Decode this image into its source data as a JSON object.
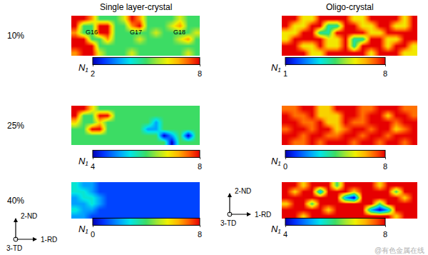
{
  "column_titles": [
    "Single layer-crystal",
    "Oligo-crystal"
  ],
  "row_labels": [
    "10%",
    "25%",
    "40%"
  ],
  "axes_keys": [
    {
      "up": "2-ND",
      "right": "1-RD",
      "out": "3-TD"
    },
    {
      "up": "2-ND",
      "right": "1-RD",
      "out": "3-TD"
    }
  ],
  "watermark": "@有色金属在线",
  "chart_data": [
    {
      "type": "heatmap",
      "column": "Single layer-crystal",
      "row": "10%",
      "colorbar_label": "N₁",
      "tick_labels": false,
      "colorbar": {
        "range": [
          2,
          8
        ],
        "ticks": [
          2,
          8
        ]
      },
      "grain_labels": [
        {
          "text": "G16",
          "x": 2,
          "y": 2
        },
        {
          "text": "G17",
          "x": 7.5,
          "y": 2
        },
        {
          "text": "G18",
          "x": 13,
          "y": 2
        }
      ],
      "cells": [
        [
          8,
          8,
          7,
          5,
          5,
          5,
          6,
          8,
          7,
          5,
          5,
          5,
          5,
          6,
          5,
          5
        ],
        [
          8,
          5,
          5,
          8,
          8,
          5,
          5,
          7,
          8,
          5,
          5,
          5,
          6,
          7,
          5,
          5
        ],
        [
          7,
          5,
          5,
          8,
          8,
          5,
          5,
          5,
          5,
          5,
          6,
          5,
          5,
          5,
          5,
          6
        ],
        [
          8,
          8,
          5,
          5,
          7,
          5,
          5,
          5,
          6,
          5,
          5,
          5,
          5,
          6,
          7,
          5
        ],
        [
          8,
          8,
          8,
          5,
          5,
          5,
          5,
          5,
          5,
          5,
          5,
          5,
          5,
          5,
          5,
          5
        ],
        [
          7,
          8,
          8,
          6,
          5,
          5,
          5,
          6,
          5,
          5,
          5,
          5,
          5,
          5,
          6,
          5
        ]
      ]
    },
    {
      "type": "heatmap",
      "column": "Single layer-crystal",
      "row": "25%",
      "colorbar_label": "N₁",
      "tick_labels": false,
      "colorbar": {
        "range": [
          4,
          8
        ],
        "ticks": [
          4,
          8
        ]
      },
      "cells": [
        [
          8,
          8,
          7,
          6,
          6,
          6,
          6,
          6,
          6,
          6,
          6,
          6,
          6,
          6,
          6,
          6
        ],
        [
          8,
          6,
          6,
          8,
          8,
          6,
          6,
          6,
          6,
          6,
          6,
          6,
          6,
          6,
          6,
          6
        ],
        [
          7,
          6,
          6,
          7,
          6,
          6,
          6,
          6,
          6,
          6,
          5,
          6,
          6,
          6,
          6,
          6
        ],
        [
          6,
          6,
          8,
          8,
          6,
          6,
          6,
          6,
          6,
          5,
          5,
          6,
          6,
          6,
          6,
          6
        ],
        [
          6,
          6,
          6,
          6,
          6,
          6,
          6,
          6,
          6,
          6,
          6,
          4,
          5,
          6,
          4,
          6
        ],
        [
          6,
          6,
          6,
          6,
          6,
          6,
          6,
          6,
          6,
          6,
          6,
          6,
          4,
          6,
          6,
          6
        ]
      ]
    },
    {
      "type": "heatmap",
      "column": "Single layer-crystal",
      "row": "40%",
      "colorbar_label": "N₁",
      "tick_labels": false,
      "colorbar": {
        "range": [
          0,
          8
        ],
        "ticks": [
          0,
          8
        ]
      },
      "cells": [
        [
          3,
          2,
          2,
          1,
          1,
          1,
          1,
          1,
          1,
          1,
          1,
          1,
          1,
          1,
          1,
          1
        ],
        [
          3,
          3,
          2,
          1,
          1,
          1,
          1,
          1,
          1,
          1,
          1,
          1,
          1,
          1,
          1,
          1
        ],
        [
          2,
          3,
          3,
          2,
          1,
          1,
          1,
          1,
          1,
          1,
          1,
          1,
          1,
          1,
          1,
          1
        ],
        [
          2,
          2,
          3,
          2,
          1,
          1,
          1,
          1,
          1,
          1,
          1,
          1,
          1,
          1,
          1,
          1
        ],
        [
          3,
          2,
          2,
          1,
          1,
          1,
          1,
          1,
          1,
          1,
          1,
          1,
          1,
          1,
          1,
          1
        ],
        [
          2,
          2,
          1,
          1,
          1,
          1,
          1,
          1,
          1,
          1,
          1,
          1,
          1,
          1,
          1,
          1
        ]
      ]
    },
    {
      "type": "heatmap",
      "column": "Oligo-crystal",
      "row": "10%",
      "colorbar_label": "N₁",
      "tick_labels": false,
      "colorbar": {
        "range": [
          1,
          8
        ],
        "ticks": [
          1,
          8
        ]
      },
      "cells": [
        [
          8,
          8,
          6,
          6,
          8,
          8,
          8,
          8,
          6,
          6,
          8,
          8,
          8,
          8,
          6,
          8
        ],
        [
          8,
          6,
          6,
          8,
          8,
          4,
          4,
          8,
          8,
          6,
          6,
          8,
          8,
          6,
          6,
          8
        ],
        [
          6,
          6,
          8,
          8,
          4,
          4,
          8,
          8,
          8,
          8,
          6,
          6,
          8,
          8,
          8,
          8
        ],
        [
          6,
          8,
          8,
          8,
          8,
          6,
          6,
          8,
          4,
          4,
          8,
          8,
          6,
          6,
          8,
          8
        ],
        [
          8,
          8,
          6,
          6,
          8,
          6,
          6,
          8,
          4,
          8,
          8,
          8,
          6,
          8,
          8,
          6
        ],
        [
          8,
          8,
          8,
          6,
          6,
          8,
          8,
          8,
          8,
          8,
          6,
          8,
          8,
          8,
          6,
          6
        ]
      ]
    },
    {
      "type": "heatmap",
      "column": "Oligo-crystal",
      "row": "25%",
      "colorbar_label": "N₁",
      "tick_labels": false,
      "colorbar": {
        "range": [
          0,
          8
        ],
        "ticks": [
          0,
          8
        ]
      },
      "cells": [
        [
          7,
          7,
          8,
          8,
          6,
          6,
          8,
          8,
          8,
          7,
          7,
          8,
          8,
          8,
          7,
          7
        ],
        [
          8,
          7,
          7,
          8,
          6,
          6,
          6,
          8,
          8,
          7,
          8,
          8,
          6,
          8,
          8,
          7
        ],
        [
          8,
          8,
          7,
          7,
          8,
          6,
          6,
          8,
          7,
          7,
          8,
          8,
          8,
          7,
          8,
          8
        ],
        [
          7,
          8,
          8,
          7,
          8,
          8,
          6,
          7,
          8,
          8,
          7,
          8,
          8,
          6,
          7,
          8
        ],
        [
          8,
          8,
          7,
          8,
          8,
          7,
          7,
          8,
          8,
          7,
          8,
          8,
          7,
          8,
          8,
          8
        ],
        [
          8,
          7,
          7,
          8,
          7,
          8,
          8,
          8,
          7,
          8,
          8,
          7,
          8,
          8,
          7,
          8
        ]
      ]
    },
    {
      "type": "heatmap",
      "column": "Oligo-crystal",
      "row": "40%",
      "colorbar_label": "N₁",
      "tick_labels": false,
      "colorbar": {
        "range": [
          4,
          8
        ],
        "ticks": [
          4,
          8
        ]
      },
      "cells": [
        [
          8,
          8,
          7,
          8,
          8,
          8,
          6,
          8,
          8,
          8,
          8,
          7,
          8,
          8,
          8,
          8
        ],
        [
          8,
          7,
          8,
          8,
          5,
          8,
          8,
          8,
          7,
          8,
          8,
          8,
          8,
          6,
          8,
          8
        ],
        [
          8,
          8,
          8,
          8,
          8,
          8,
          8,
          5,
          4,
          8,
          8,
          8,
          8,
          8,
          7,
          8
        ],
        [
          7,
          8,
          8,
          6,
          8,
          8,
          8,
          8,
          8,
          8,
          8,
          6,
          8,
          8,
          8,
          8
        ],
        [
          8,
          8,
          8,
          8,
          8,
          7,
          8,
          8,
          8,
          8,
          5,
          4,
          5,
          8,
          8,
          8
        ],
        [
          8,
          8,
          7,
          8,
          8,
          8,
          8,
          8,
          8,
          8,
          8,
          8,
          8,
          7,
          8,
          8
        ]
      ]
    }
  ]
}
